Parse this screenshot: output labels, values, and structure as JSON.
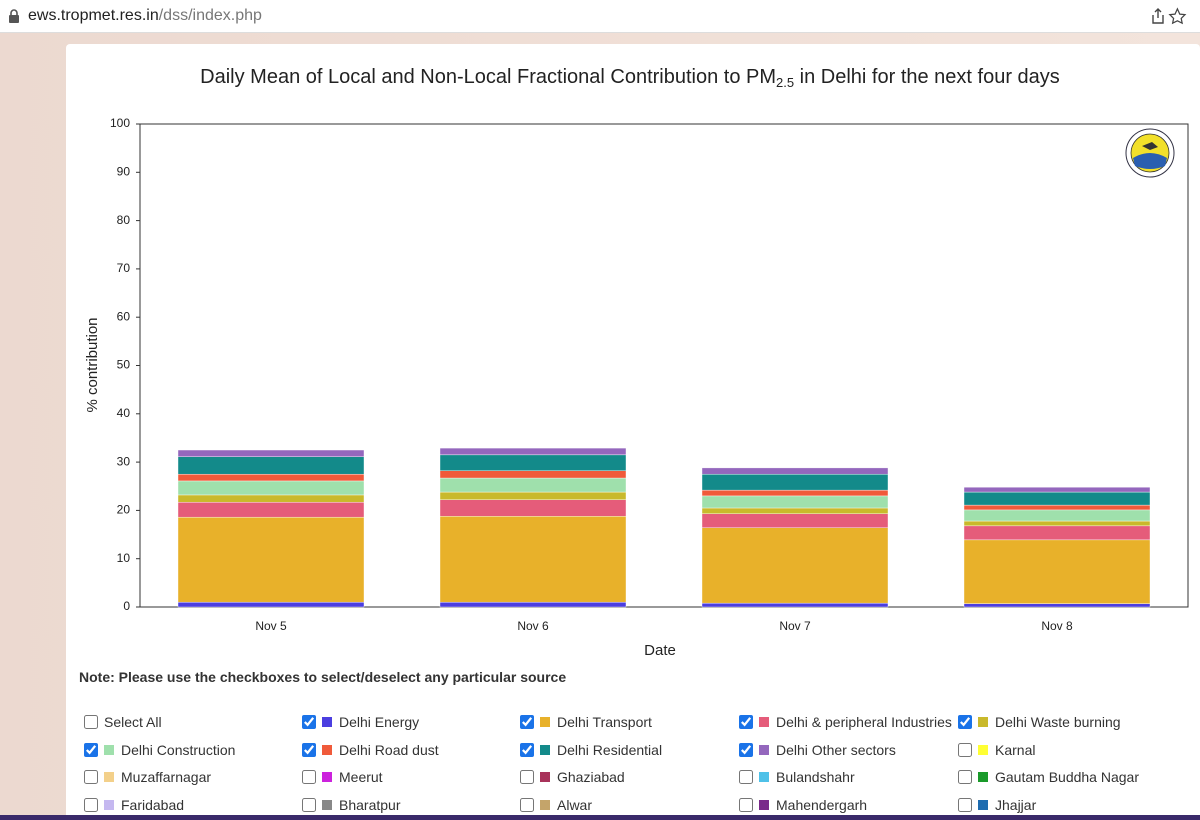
{
  "browser": {
    "url_host": "ews.tropmet.res.in",
    "url_path": "/dss/index.php"
  },
  "chart_data": {
    "type": "stacked-bar",
    "title": {
      "main": "Daily Mean of Local and Non-Local Fractional Contribution to PM",
      "subscript": "2.5",
      "rest": " in Delhi for the next four days"
    },
    "x_label": "Date",
    "y_label": "% contribution",
    "categories": [
      "Nov 5",
      "Nov 6",
      "Nov 7",
      "Nov 8"
    ],
    "ylim": [
      0,
      100
    ],
    "yticks": [
      0,
      10,
      20,
      30,
      40,
      50,
      60,
      70,
      80,
      90,
      100
    ],
    "grid": false,
    "series": [
      {
        "name": "Delhi Energy",
        "color": "#4b3ee0",
        "checked": true,
        "values": [
          1.0,
          1.0,
          0.8,
          0.7
        ]
      },
      {
        "name": "Delhi Transport",
        "color": "#e8b12a",
        "checked": true,
        "values": [
          17.6,
          17.8,
          15.6,
          13.2
        ]
      },
      {
        "name": "Delhi & peripheral Industries",
        "color": "#e55c7a",
        "checked": true,
        "values": [
          3.1,
          3.4,
          2.9,
          2.9
        ]
      },
      {
        "name": "Delhi Waste burning",
        "color": "#c9b92b",
        "checked": true,
        "values": [
          1.5,
          1.6,
          1.2,
          1.0
        ]
      },
      {
        "name": "Delhi Construction",
        "color": "#9fe0ac",
        "checked": true,
        "values": [
          2.9,
          2.9,
          2.5,
          2.3
        ]
      },
      {
        "name": "Delhi Road dust",
        "color": "#f05a3a",
        "checked": true,
        "values": [
          1.4,
          1.5,
          1.2,
          1.0
        ]
      },
      {
        "name": "Delhi Residential",
        "color": "#138a8a",
        "checked": true,
        "values": [
          3.6,
          3.3,
          3.3,
          2.7
        ]
      },
      {
        "name": "Delhi Other sectors",
        "color": "#9467bd",
        "checked": true,
        "values": [
          1.4,
          1.4,
          1.3,
          1.0
        ]
      }
    ]
  },
  "note": "Note: Please use the checkboxes to select/deselect any particular source",
  "select_all": {
    "name": "Select All",
    "checked": false
  },
  "other_sources": [
    {
      "name": "Karnal",
      "color": "#ffff33",
      "checked": false
    },
    {
      "name": "Muzaffarnagar",
      "color": "#f3d08a",
      "checked": false
    },
    {
      "name": "Meerut",
      "color": "#cc22dd",
      "checked": false
    },
    {
      "name": "Ghaziabad",
      "color": "#a8325a",
      "checked": false
    },
    {
      "name": "Bulandshahr",
      "color": "#4fc1e8",
      "checked": false
    },
    {
      "name": "Gautam Buddha Nagar",
      "color": "#1a9a2a",
      "checked": false
    },
    {
      "name": "Faridabad",
      "color": "#c5b8f0",
      "checked": false
    },
    {
      "name": "Bharatpur",
      "color": "#888888",
      "checked": false
    },
    {
      "name": "Alwar",
      "color": "#c4a46a",
      "checked": false
    },
    {
      "name": "Mahendergarh",
      "color": "#7a2a8a",
      "checked": false
    },
    {
      "name": "Jhajjar",
      "color": "#1e6cb0",
      "checked": false
    }
  ]
}
